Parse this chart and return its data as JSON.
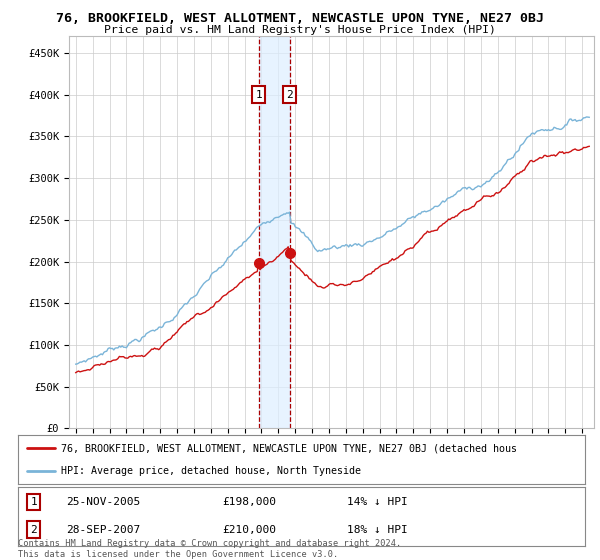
{
  "title": "76, BROOKFIELD, WEST ALLOTMENT, NEWCASTLE UPON TYNE, NE27 0BJ",
  "subtitle": "Price paid vs. HM Land Registry's House Price Index (HPI)",
  "hpi_label": "HPI: Average price, detached house, North Tyneside",
  "property_label": "76, BROOKFIELD, WEST ALLOTMENT, NEWCASTLE UPON TYNE, NE27 0BJ (detached hous",
  "ylim": [
    0,
    470000
  ],
  "yticks": [
    0,
    50000,
    100000,
    150000,
    200000,
    250000,
    300000,
    350000,
    400000,
    450000
  ],
  "ytick_labels": [
    "£0",
    "£50K",
    "£100K",
    "£150K",
    "£200K",
    "£250K",
    "£300K",
    "£350K",
    "£400K",
    "£450K"
  ],
  "sale1_date": "25-NOV-2005",
  "sale1_price": 198000,
  "sale1_pct": "14% ↓ HPI",
  "sale2_date": "28-SEP-2007",
  "sale2_price": 210000,
  "sale2_pct": "18% ↓ HPI",
  "hpi_color": "#7ab4d8",
  "property_color": "#cc1111",
  "sale_marker_color": "#cc1111",
  "annotation_box_color": "#aa0000",
  "shading_color": "#ddeeff",
  "footer": "Contains HM Land Registry data © Crown copyright and database right 2024.\nThis data is licensed under the Open Government Licence v3.0.",
  "background_color": "#ffffff",
  "grid_color": "#cccccc"
}
